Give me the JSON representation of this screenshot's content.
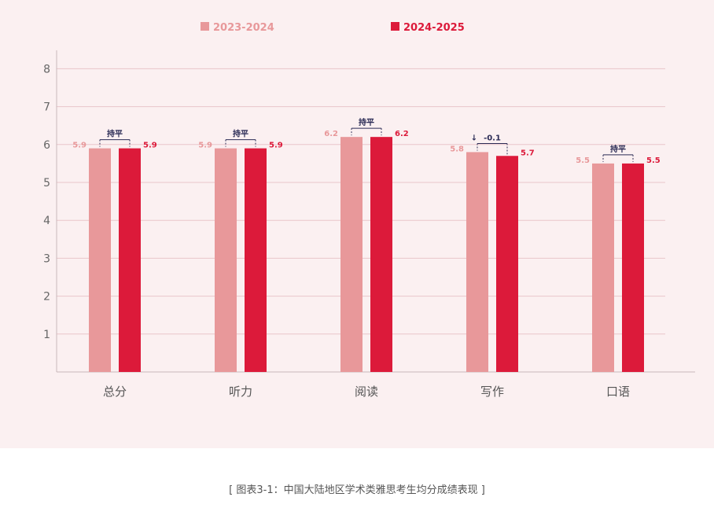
{
  "caption": "[ 图表3-1：中国大陆地区学术类雅思考生均分成绩表现 ]",
  "colors": {
    "prev": "#e8989a",
    "curr": "#dc1a3a",
    "ann": "#2b2b55",
    "panel": "#fbf0f1"
  },
  "chart_data": {
    "type": "bar",
    "categories": [
      "总分",
      "听力",
      "阅读",
      "写作",
      "口语"
    ],
    "series": [
      {
        "name": "2023-2024",
        "values": [
          5.9,
          5.9,
          6.2,
          5.8,
          5.5
        ]
      },
      {
        "name": "2024-2025",
        "values": [
          5.9,
          5.9,
          6.2,
          5.7,
          5.5
        ]
      }
    ],
    "value_labels": [
      [
        "5.9",
        "5.9",
        "6.2",
        "5.8",
        "5.5"
      ],
      [
        "5.9",
        "5.9",
        "6.2",
        "5.7",
        "5.5"
      ]
    ],
    "annotations": [
      "持平",
      "持平",
      "持平",
      "-0.1",
      "持平"
    ],
    "annotation_arrows": [
      "",
      "",
      "",
      "↓",
      ""
    ],
    "yticks": [
      "1",
      "2",
      "3",
      "4",
      "5",
      "6",
      "7",
      "8"
    ],
    "ylim": [
      0,
      8.5
    ],
    "grid": true,
    "legend": "top-center"
  }
}
